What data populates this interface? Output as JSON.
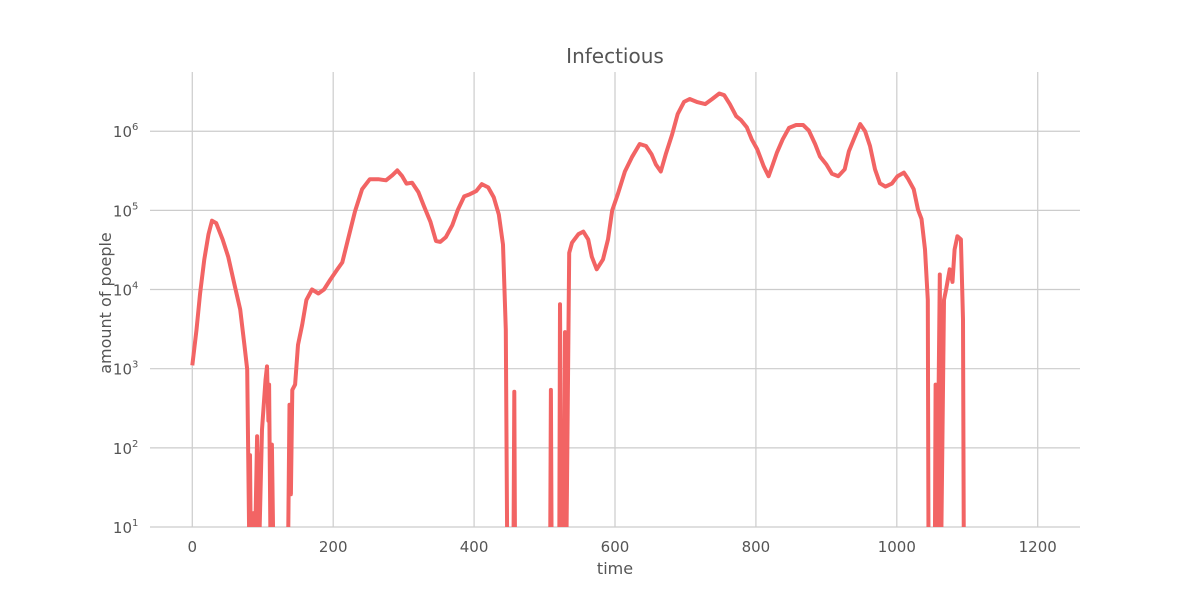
{
  "chart_data": {
    "type": "line",
    "title": "Infectious",
    "xlabel": "time",
    "ylabel": "amount of poeple",
    "xlim": [
      -60,
      1260
    ],
    "ylim": [
      10,
      5600000
    ],
    "yscale": "log",
    "grid": true,
    "x_ticks": [
      0,
      200,
      400,
      600,
      800,
      1000,
      1200
    ],
    "x_tick_labels": [
      "0",
      "200",
      "400",
      "600",
      "800",
      "1000",
      "1200"
    ],
    "y_ticks": [
      10,
      100,
      1000,
      10000,
      100000,
      1000000
    ],
    "y_tick_labels": [
      {
        "base": "10",
        "exp": "1"
      },
      {
        "base": "10",
        "exp": "2"
      },
      {
        "base": "10",
        "exp": "3"
      },
      {
        "base": "10",
        "exp": "4"
      },
      {
        "base": "10",
        "exp": "5"
      },
      {
        "base": "10",
        "exp": "6"
      }
    ],
    "colors": {
      "line": "#f26464",
      "grid": "#cccccc",
      "text": "#555555"
    },
    "series": [
      {
        "x": [
          0,
          6,
          11,
          17,
          23,
          28,
          34,
          43,
          51,
          60,
          68,
          74,
          78,
          81,
          82,
          83,
          87,
          89,
          92,
          95,
          99,
          104,
          106,
          108,
          109,
          111,
          113,
          115,
          136,
          138,
          140,
          142,
          146,
          150,
          156,
          162,
          170,
          179,
          187,
          196,
          206,
          213,
          221,
          231,
          241,
          252,
          264,
          275,
          284,
          291,
          298,
          304,
          312,
          321,
          329,
          338,
          346,
          352,
          360,
          369,
          377,
          386,
          394,
          403,
          411,
          420,
          428,
          435,
          441,
          445,
          447,
          456,
          457,
          458,
          508,
          509,
          510,
          521,
          522,
          524,
          528,
          529,
          531,
          535,
          539,
          548,
          555,
          562,
          567,
          574,
          583,
          590,
          596,
          604,
          614,
          624,
          635,
          644,
          652,
          658,
          665,
          672,
          681,
          689,
          698,
          706,
          716,
          728,
          738,
          748,
          755,
          763,
          772,
          779,
          787,
          794,
          802,
          811,
          818,
          824,
          830,
          838,
          847,
          857,
          867,
          875,
          884,
          891,
          900,
          908,
          917,
          926,
          932,
          939,
          948,
          955,
          962,
          969,
          976,
          984,
          993,
          1001,
          1010,
          1016,
          1024,
          1030,
          1035,
          1040,
          1044,
          1045,
          1054,
          1055,
          1057,
          1061,
          1063,
          1067,
          1070,
          1075,
          1079,
          1082,
          1086,
          1091,
          1094,
          1095
        ],
        "y": [
          1100,
          3100,
          8700,
          24000,
          50000,
          74000,
          69000,
          43000,
          26000,
          11500,
          5600,
          2000,
          980,
          0,
          81,
          0,
          15,
          0,
          140,
          0,
          170,
          720,
          1070,
          220,
          630,
          0,
          110,
          0,
          0,
          350,
          26,
          540,
          630,
          2000,
          3600,
          7400,
          10000,
          8900,
          10000,
          13400,
          18000,
          22000,
          43000,
          97000,
          185000,
          248000,
          248000,
          240000,
          278000,
          320000,
          270000,
          218000,
          224000,
          170000,
          112000,
          72000,
          41000,
          40000,
          46000,
          65000,
          102000,
          150000,
          160000,
          175000,
          215000,
          195000,
          146000,
          89000,
          37000,
          3100,
          0,
          0,
          510,
          0,
          0,
          540,
          0,
          0,
          6500,
          0,
          0,
          2900,
          0,
          29000,
          39000,
          50000,
          54000,
          43000,
          26000,
          18000,
          24000,
          43000,
          100000,
          160000,
          310000,
          470000,
          690000,
          650000,
          510000,
          380000,
          310000,
          510000,
          910000,
          1650000,
          2350000,
          2550000,
          2350000,
          2200000,
          2550000,
          3000000,
          2850000,
          2200000,
          1550000,
          1380000,
          1120000,
          790000,
          590000,
          360000,
          270000,
          380000,
          540000,
          790000,
          1100000,
          1200000,
          1200000,
          1020000,
          690000,
          480000,
          380000,
          290000,
          270000,
          330000,
          560000,
          790000,
          1230000,
          1000000,
          650000,
          330000,
          220000,
          200000,
          218000,
          270000,
          300000,
          250000,
          185000,
          102000,
          78000,
          32000,
          7400,
          0,
          0,
          630,
          0,
          15500,
          0,
          7400,
          10000,
          18000,
          12500,
          32000,
          47000,
          43000,
          4200,
          0
        ]
      }
    ]
  }
}
